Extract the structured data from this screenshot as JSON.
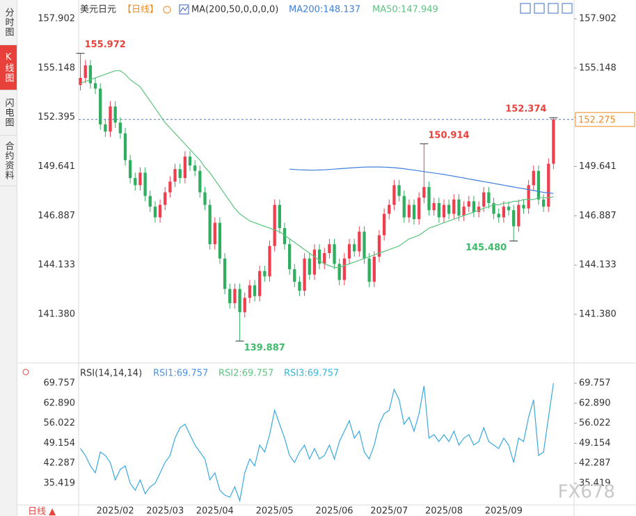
{
  "sidebar": {
    "tabs": [
      "分时图",
      "K线图",
      "闪电图",
      "合约资料"
    ]
  },
  "chart_data": [
    {
      "type": "candlestick",
      "title": "美元日元",
      "period": "【日线】",
      "indicator": "MA(200,50,0,0,0,0)",
      "up_color": "#ef3f4f",
      "down_color": "#2fae5f",
      "candles": [
        [
          154.2,
          155.972,
          153.9,
          154.6
        ],
        [
          154.6,
          155.6,
          154.3,
          155.3
        ],
        [
          155.3,
          155.6,
          154.0,
          154.3
        ],
        [
          154.3,
          154.6,
          153.7,
          154.0
        ],
        [
          154.0,
          154.3,
          151.7,
          152.0
        ],
        [
          152.0,
          152.3,
          151.3,
          151.6
        ],
        [
          151.6,
          153.3,
          151.3,
          153.0
        ],
        [
          153.0,
          153.3,
          151.8,
          152.1
        ],
        [
          152.1,
          152.4,
          151.2,
          151.5
        ],
        [
          151.5,
          151.8,
          149.7,
          150.0
        ],
        [
          150.0,
          150.3,
          148.7,
          149.0
        ],
        [
          149.0,
          149.3,
          148.3,
          148.6
        ],
        [
          148.6,
          149.6,
          148.3,
          149.3
        ],
        [
          149.3,
          149.6,
          147.7,
          148.0
        ],
        [
          148.0,
          148.3,
          147.1,
          147.4
        ],
        [
          147.4,
          147.7,
          146.5,
          146.8
        ],
        [
          146.8,
          147.8,
          146.5,
          147.5
        ],
        [
          147.5,
          148.5,
          147.2,
          148.2
        ],
        [
          148.2,
          149.1,
          147.9,
          148.8
        ],
        [
          148.8,
          149.8,
          148.5,
          149.5
        ],
        [
          149.5,
          149.8,
          148.7,
          149.0
        ],
        [
          149.0,
          150.5,
          148.7,
          150.2
        ],
        [
          150.2,
          150.5,
          149.4,
          149.7
        ],
        [
          149.7,
          150.0,
          149.1,
          149.4
        ],
        [
          149.4,
          149.7,
          147.9,
          148.2
        ],
        [
          148.2,
          148.5,
          147.2,
          147.5
        ],
        [
          147.5,
          147.8,
          145.0,
          145.3
        ],
        [
          145.3,
          146.8,
          145.0,
          146.5
        ],
        [
          146.5,
          146.8,
          144.2,
          144.5
        ],
        [
          144.5,
          144.8,
          142.5,
          142.8
        ],
        [
          142.8,
          143.1,
          141.7,
          142.0
        ],
        [
          142.0,
          143.1,
          141.7,
          142.8
        ],
        [
          142.8,
          143.1,
          139.887,
          141.5
        ],
        [
          141.5,
          142.6,
          141.2,
          142.3
        ],
        [
          142.3,
          143.3,
          142.0,
          143.0
        ],
        [
          143.0,
          143.3,
          142.1,
          142.4
        ],
        [
          142.4,
          144.1,
          142.1,
          143.8
        ],
        [
          143.8,
          144.1,
          143.2,
          143.5
        ],
        [
          143.5,
          145.5,
          143.2,
          145.2
        ],
        [
          145.2,
          147.8,
          144.9,
          147.5
        ],
        [
          147.5,
          147.8,
          145.9,
          146.2
        ],
        [
          146.2,
          146.5,
          145.0,
          145.3
        ],
        [
          145.3,
          145.6,
          143.6,
          143.9
        ],
        [
          143.9,
          144.2,
          142.9,
          143.2
        ],
        [
          143.2,
          143.5,
          142.4,
          142.7
        ],
        [
          142.7,
          144.8,
          142.4,
          144.5
        ],
        [
          144.5,
          144.8,
          143.3,
          143.6
        ],
        [
          143.6,
          145.3,
          143.3,
          145.0
        ],
        [
          145.0,
          145.3,
          143.9,
          144.2
        ],
        [
          144.2,
          145.1,
          143.9,
          144.8
        ],
        [
          144.8,
          145.6,
          144.5,
          145.3
        ],
        [
          145.3,
          145.6,
          143.9,
          144.2
        ],
        [
          144.2,
          144.5,
          143.0,
          143.3
        ],
        [
          143.3,
          144.8,
          143.0,
          144.5
        ],
        [
          144.5,
          145.6,
          144.2,
          145.3
        ],
        [
          145.3,
          145.6,
          144.6,
          144.9
        ],
        [
          144.9,
          146.3,
          144.6,
          146.0
        ],
        [
          146.0,
          146.3,
          144.2,
          144.5
        ],
        [
          144.5,
          144.8,
          142.9,
          143.2
        ],
        [
          143.2,
          144.9,
          142.9,
          144.6
        ],
        [
          144.6,
          146.1,
          144.3,
          145.8
        ],
        [
          145.8,
          147.3,
          145.5,
          147.0
        ],
        [
          147.0,
          147.8,
          146.7,
          147.5
        ],
        [
          147.5,
          148.9,
          147.2,
          148.6
        ],
        [
          148.6,
          148.9,
          147.7,
          148.0
        ],
        [
          148.0,
          148.3,
          146.5,
          146.8
        ],
        [
          146.8,
          147.8,
          146.5,
          147.5
        ],
        [
          147.5,
          147.8,
          146.4,
          146.7
        ],
        [
          146.7,
          148.2,
          146.4,
          147.9
        ],
        [
          147.9,
          150.914,
          147.6,
          148.5
        ],
        [
          148.5,
          148.8,
          146.9,
          147.2
        ],
        [
          147.2,
          147.9,
          146.9,
          147.6
        ],
        [
          147.6,
          147.9,
          146.5,
          146.8
        ],
        [
          146.8,
          147.8,
          146.5,
          147.5
        ],
        [
          147.5,
          147.8,
          146.7,
          147.0
        ],
        [
          147.0,
          148.1,
          146.7,
          147.8
        ],
        [
          147.8,
          148.1,
          146.6,
          146.9
        ],
        [
          146.9,
          147.7,
          146.6,
          147.4
        ],
        [
          147.4,
          148.0,
          147.1,
          147.7
        ],
        [
          147.7,
          148.0,
          146.8,
          147.1
        ],
        [
          147.1,
          147.7,
          146.8,
          147.4
        ],
        [
          147.4,
          148.5,
          147.1,
          148.2
        ],
        [
          148.2,
          148.5,
          147.3,
          147.6
        ],
        [
          147.6,
          147.9,
          146.7,
          147.0
        ],
        [
          147.0,
          147.3,
          146.5,
          146.8
        ],
        [
          146.8,
          147.7,
          146.5,
          147.4
        ],
        [
          147.4,
          147.7,
          146.9,
          147.2
        ],
        [
          147.2,
          147.5,
          145.48,
          146.3
        ],
        [
          146.3,
          147.8,
          146.0,
          147.5
        ],
        [
          147.5,
          147.8,
          147.0,
          147.3
        ],
        [
          147.3,
          148.9,
          147.0,
          148.6
        ],
        [
          148.6,
          149.7,
          148.3,
          149.4
        ],
        [
          149.4,
          149.7,
          147.5,
          147.8
        ],
        [
          147.8,
          148.1,
          147.1,
          147.4
        ],
        [
          147.4,
          150.1,
          147.1,
          149.8
        ],
        [
          149.8,
          152.374,
          149.5,
          152.275
        ]
      ],
      "series": [
        {
          "name": "MA200",
          "label": "MA200:148.137",
          "color": "#3d7fdc",
          "values": [
            null,
            null,
            null,
            null,
            null,
            null,
            null,
            null,
            null,
            null,
            null,
            null,
            null,
            null,
            null,
            null,
            null,
            null,
            null,
            null,
            null,
            null,
            null,
            null,
            null,
            null,
            null,
            null,
            null,
            null,
            null,
            null,
            null,
            null,
            null,
            null,
            null,
            null,
            null,
            null,
            null,
            null,
            149.5,
            149.48,
            149.46,
            149.45,
            149.44,
            149.44,
            149.45,
            149.46,
            149.48,
            149.5,
            149.52,
            149.54,
            149.56,
            149.58,
            149.6,
            149.61,
            149.62,
            149.62,
            149.62,
            149.61,
            149.6,
            149.58,
            149.55,
            149.52,
            149.48,
            149.44,
            149.4,
            149.36,
            149.32,
            149.28,
            149.24,
            149.2,
            149.15,
            149.1,
            149.05,
            149.0,
            148.95,
            148.9,
            148.85,
            148.8,
            148.75,
            148.7,
            148.65,
            148.6,
            148.55,
            148.5,
            148.45,
            148.4,
            148.35,
            148.3,
            148.25,
            148.2,
            148.17,
            148.137
          ]
        },
        {
          "name": "MA50",
          "label": "MA50:147.949",
          "color": "#5cc47e",
          "values": [
            154.3,
            154.4,
            154.5,
            154.6,
            154.7,
            154.8,
            154.9,
            155.0,
            155.0,
            154.8,
            154.5,
            154.3,
            154.1,
            153.7,
            153.3,
            152.9,
            152.5,
            152.1,
            151.8,
            151.5,
            151.2,
            150.9,
            150.6,
            150.3,
            150.0,
            149.6,
            149.3,
            148.9,
            148.5,
            148.1,
            147.7,
            147.3,
            147.0,
            146.8,
            146.6,
            146.5,
            146.4,
            146.3,
            146.2,
            146.1,
            146.0,
            145.8,
            145.6,
            145.4,
            145.2,
            145.0,
            144.8,
            144.6,
            144.4,
            144.2,
            144.1,
            144.0,
            144.0,
            144.1,
            144.2,
            144.3,
            144.4,
            144.5,
            144.6,
            144.7,
            144.8,
            144.9,
            145.0,
            145.1,
            145.2,
            145.4,
            145.6,
            145.7,
            145.8,
            146.0,
            146.2,
            146.3,
            146.4,
            146.5,
            146.6,
            146.7,
            146.8,
            146.9,
            147.0,
            147.1,
            147.2,
            147.3,
            147.4,
            147.5,
            147.5,
            147.6,
            147.6,
            147.7,
            147.7,
            147.8,
            147.8,
            147.8,
            147.9,
            147.9,
            147.9,
            147.949
          ]
        }
      ],
      "annotations": [
        155.972,
        139.887,
        150.914,
        {
          "value": 145.48,
          "label": "145.480"
        },
        152.374
      ],
      "annotation_colors": {
        "high": "#e8413b",
        "low": "#3dbb6a"
      },
      "last_price": 152.275,
      "ylim": [
        138.93,
        158.76
      ],
      "yticks": [
        157.902,
        155.148,
        152.395,
        149.641,
        146.887,
        144.133,
        {
          "value": 141.38,
          "label": "141.380"
        }
      ],
      "xlim": [
        -0.5,
        95.5
      ],
      "xticks": [
        {
          "value": 7,
          "label": "2025/02"
        },
        {
          "value": 17,
          "label": "2025/03"
        },
        {
          "value": 27,
          "label": "2025/04"
        },
        {
          "value": 39,
          "label": "2025/05"
        },
        {
          "value": 51,
          "label": "2025/06"
        },
        {
          "value": 62,
          "label": "2025/07"
        },
        {
          "value": 73,
          "label": "2025/08"
        },
        {
          "value": 85,
          "label": "2025/09"
        }
      ],
      "grid": false
    },
    {
      "type": "line",
      "title": "RSI(14,14,14)",
      "legend": [
        {
          "label": "RSI1:69.757",
          "color": "#4a90e2"
        },
        {
          "label": "RSI2:69.757",
          "color": "#5cc47e"
        },
        {
          "label": "RSI3:69.757",
          "color": "#37b5d8"
        }
      ],
      "color": "#38a8de",
      "values": [
        47.35,
        44.96,
        41.39,
        39.0,
        46.16,
        44.96,
        42.58,
        36.62,
        40.2,
        41.39,
        35.43,
        33.04,
        36.62,
        31.85,
        34.24,
        35.43,
        39.0,
        42.58,
        44.96,
        50.92,
        54.5,
        55.69,
        52.12,
        48.54,
        46.16,
        43.77,
        36.62,
        39.0,
        33.04,
        31.38,
        30.66,
        34.24,
        29.47,
        39.0,
        43.77,
        41.39,
        48.54,
        46.16,
        52.12,
        60.46,
        55.69,
        50.92,
        44.96,
        42.58,
        46.16,
        48.54,
        43.77,
        47.35,
        43.77,
        44.96,
        48.54,
        43.77,
        49.73,
        53.31,
        56.89,
        50.92,
        53.31,
        46.16,
        43.77,
        48.54,
        55.69,
        59.27,
        60.46,
        67.61,
        64.04,
        55.69,
        58.08,
        53.31,
        59.27,
        68.8,
        50.92,
        52.12,
        49.73,
        52.12,
        49.73,
        53.31,
        48.54,
        50.92,
        52.12,
        48.54,
        49.73,
        54.5,
        49.73,
        48.54,
        47.35,
        50.92,
        48.54,
        42.58,
        50.92,
        49.73,
        58.08,
        64.04,
        44.96,
        46.16,
        58.08,
        69.757
      ],
      "ylim": [
        28.27,
        72.38
      ],
      "yticks": [
        69.757,
        {
          "value": 62.89,
          "label": "62.890"
        },
        56.022,
        49.154,
        42.287,
        35.419
      ],
      "grid": false
    }
  ],
  "footer": {
    "period": "日线 ▲"
  },
  "watermark": "FX678"
}
